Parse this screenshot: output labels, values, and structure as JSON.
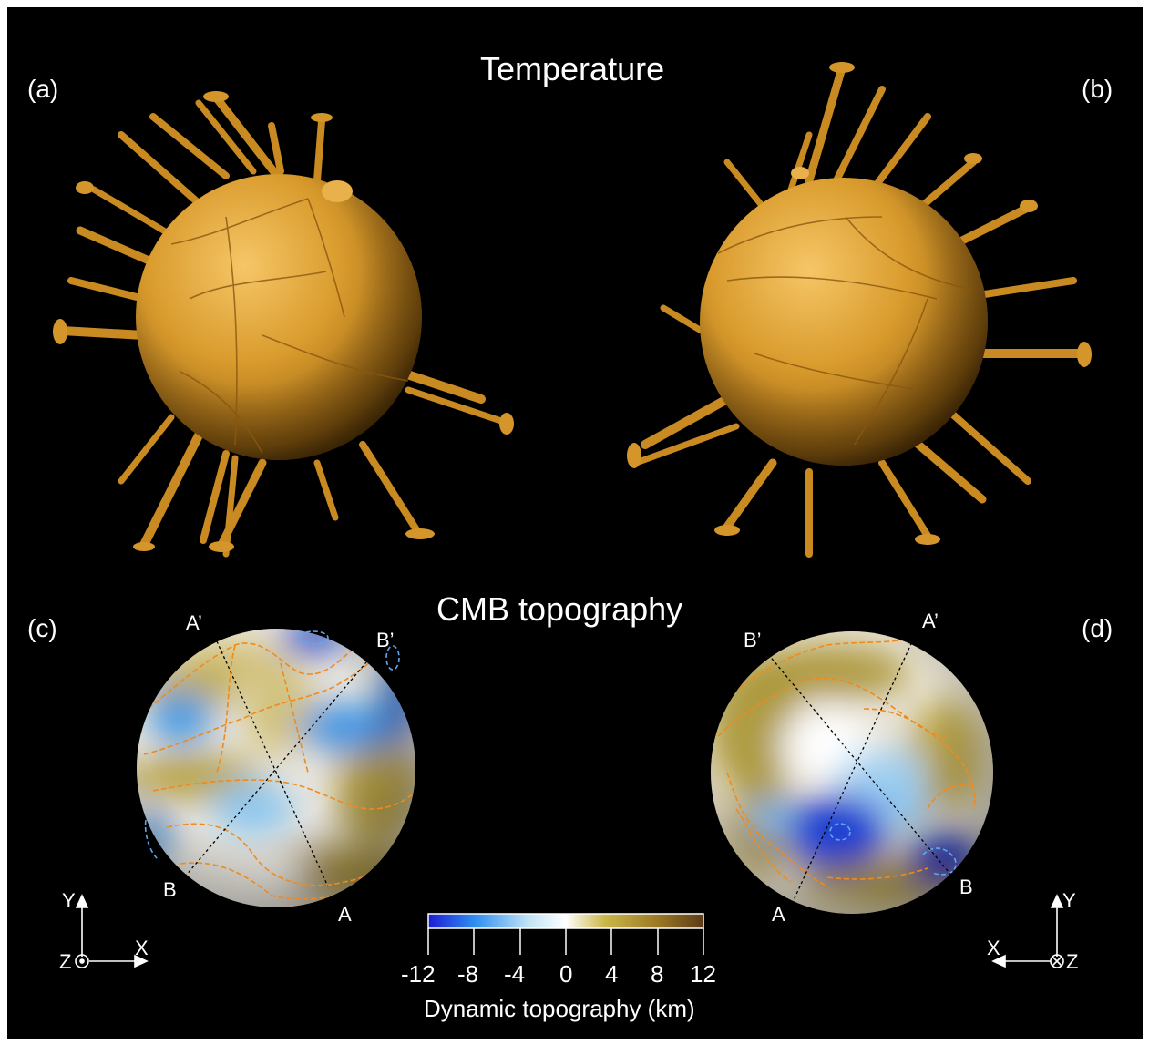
{
  "top_title": "Temperature",
  "bottom_title": "CMB topography",
  "panel_labels": {
    "a": "(a)",
    "b": "(b)",
    "c": "(c)",
    "d": "(d)"
  },
  "profile_points": {
    "c": {
      "a_prime": "A’",
      "b_prime": "B’",
      "a": "A",
      "b": "B"
    },
    "d": {
      "a_prime": "A’",
      "b_prime": "B’",
      "a": "A",
      "b": "B"
    }
  },
  "axes": {
    "left": {
      "y": "Y",
      "x": "X",
      "z": "Z",
      "z_symbol": "out-of-page-dot"
    },
    "right": {
      "y": "Y",
      "x": "X",
      "z": "Z",
      "z_symbol": "into-page-cross"
    }
  },
  "colorbar": {
    "title": "Dynamic topography (km)",
    "min": -12,
    "max": 12,
    "ticks": [
      "-12",
      "-8",
      "-4",
      "0",
      "4",
      "8",
      "12"
    ],
    "colors": [
      "#1c1cd6",
      "#2f8ef0",
      "#bfe2f5",
      "#ffffff",
      "#cbb84a",
      "#9c7a26",
      "#5c3b17"
    ]
  },
  "isosurface_color": "#d89a2b",
  "contour_colors": {
    "positive": "#f08a1c",
    "negative": "#5fa8f0"
  }
}
